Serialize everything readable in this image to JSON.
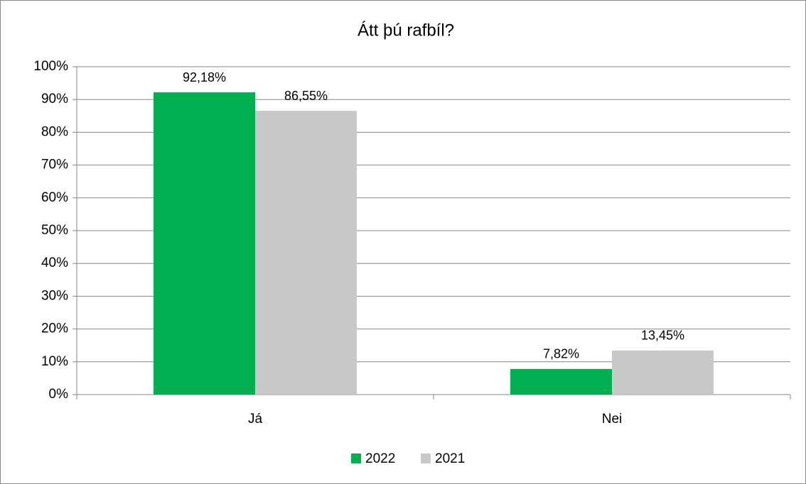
{
  "chart_data": {
    "type": "bar",
    "title": "Átt þú rafbíl?",
    "categories": [
      "Já",
      "Nei"
    ],
    "series": [
      {
        "name": "2022",
        "color": "#00b050",
        "values": [
          92.18,
          7.82
        ],
        "value_labels": [
          "92,18%",
          "7,82%"
        ]
      },
      {
        "name": "2021",
        "color": "#c8c8c8",
        "values": [
          86.55,
          13.45
        ],
        "value_labels": [
          "86,55%",
          "13,45%"
        ]
      }
    ],
    "ylim": [
      0,
      100
    ],
    "yticks": [
      {
        "value": 0,
        "label": "0%"
      },
      {
        "value": 10,
        "label": "10%"
      },
      {
        "value": 20,
        "label": "20%"
      },
      {
        "value": 30,
        "label": "30%"
      },
      {
        "value": 40,
        "label": "40%"
      },
      {
        "value": 50,
        "label": "50%"
      },
      {
        "value": 60,
        "label": "60%"
      },
      {
        "value": 70,
        "label": "70%"
      },
      {
        "value": 80,
        "label": "80%"
      },
      {
        "value": 90,
        "label": "90%"
      },
      {
        "value": 100,
        "label": "100%"
      }
    ],
    "grid": true,
    "legend": "bottom"
  }
}
